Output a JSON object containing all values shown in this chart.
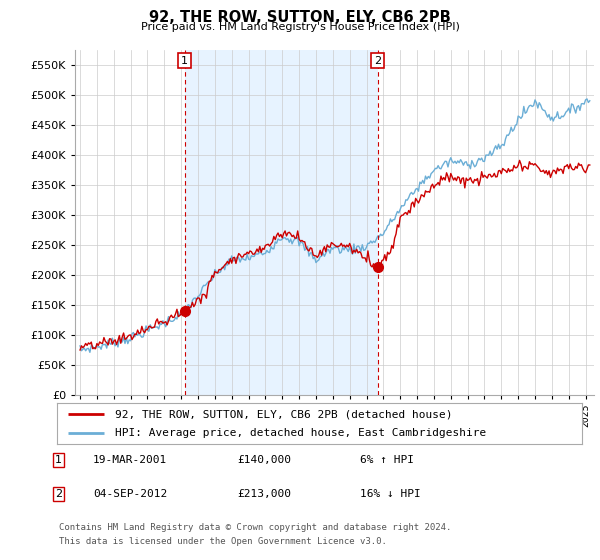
{
  "title": "92, THE ROW, SUTTON, ELY, CB6 2PB",
  "subtitle": "Price paid vs. HM Land Registry's House Price Index (HPI)",
  "legend_line1": "92, THE ROW, SUTTON, ELY, CB6 2PB (detached house)",
  "legend_line2": "HPI: Average price, detached house, East Cambridgeshire",
  "footnote_line1": "Contains HM Land Registry data © Crown copyright and database right 2024.",
  "footnote_line2": "This data is licensed under the Open Government Licence v3.0.",
  "marker1_date": "19-MAR-2001",
  "marker1_price": "£140,000",
  "marker1_hpi": "6% ↑ HPI",
  "marker1_x": 2001.21,
  "marker1_y": 140000,
  "marker2_date": "04-SEP-2012",
  "marker2_price": "£213,000",
  "marker2_hpi": "16% ↓ HPI",
  "marker2_x": 2012.67,
  "marker2_y": 213000,
  "hpi_color": "#6baed6",
  "price_color": "#cc0000",
  "shade_color": "#ddeeff",
  "ylim": [
    0,
    575000
  ],
  "yticks": [
    0,
    50000,
    100000,
    150000,
    200000,
    250000,
    300000,
    350000,
    400000,
    450000,
    500000,
    550000
  ],
  "xlim_min": 1994.7,
  "xlim_max": 2025.5,
  "background_color": "#ffffff",
  "grid_color": "#cccccc",
  "hpi_anchors_x": [
    1995.0,
    1996.0,
    1997.0,
    1998.0,
    1999.0,
    2000.0,
    2001.0,
    2002.0,
    2003.0,
    2004.0,
    2005.0,
    2006.0,
    2007.0,
    2008.0,
    2009.0,
    2010.0,
    2011.0,
    2012.0,
    2013.0,
    2014.0,
    2015.0,
    2016.0,
    2017.0,
    2018.0,
    2019.0,
    2020.0,
    2021.0,
    2022.0,
    2023.0,
    2024.0,
    2025.0
  ],
  "hpi_anchors_y": [
    75000,
    80000,
    87000,
    95000,
    107000,
    120000,
    135000,
    165000,
    200000,
    225000,
    228000,
    238000,
    265000,
    255000,
    225000,
    245000,
    242000,
    248000,
    270000,
    310000,
    345000,
    375000,
    390000,
    385000,
    395000,
    415000,
    460000,
    490000,
    462000,
    472000,
    490000
  ],
  "price_anchors_x": [
    1995.0,
    1996.0,
    1997.0,
    1998.0,
    1999.0,
    2000.0,
    2001.21,
    2002.5,
    2003.0,
    2004.0,
    2005.0,
    2006.0,
    2007.0,
    2008.0,
    2009.0,
    2010.0,
    2011.0,
    2012.67,
    2013.5,
    2014.0,
    2015.0,
    2016.0,
    2017.0,
    2018.0,
    2019.0,
    2020.0,
    2021.0,
    2022.0,
    2023.0,
    2024.0,
    2025.0
  ],
  "price_anchors_y": [
    78000,
    83000,
    90000,
    98000,
    110000,
    123000,
    140000,
    170000,
    205000,
    228000,
    235000,
    248000,
    272000,
    262000,
    232000,
    252000,
    247000,
    213000,
    245000,
    295000,
    325000,
    350000,
    365000,
    355000,
    362000,
    370000,
    380000,
    382000,
    368000,
    382000,
    378000
  ]
}
